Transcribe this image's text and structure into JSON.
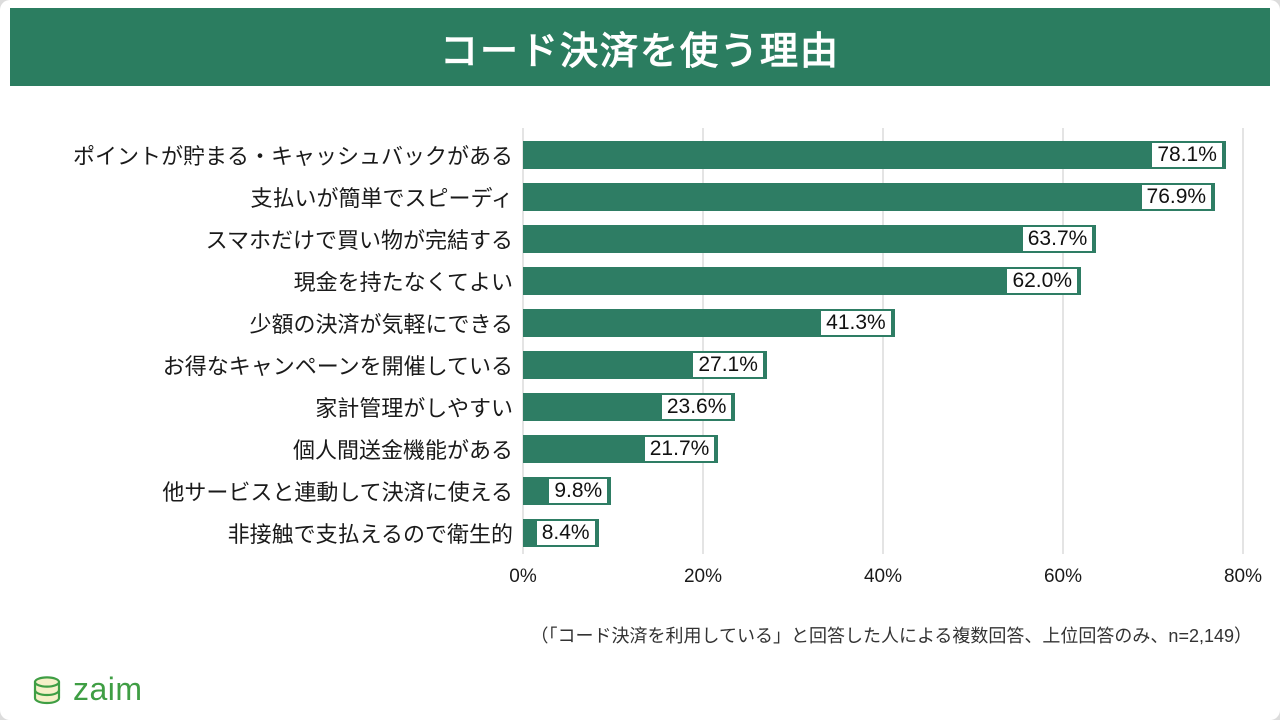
{
  "header": {
    "title": "コード決済を使う理由"
  },
  "colors": {
    "banner_green": "#2b7d60",
    "bar_green": "#2e7d64",
    "gridline_gray": "#c9c9c9",
    "logo_green": "#3f9e44"
  },
  "chart_data": {
    "type": "bar",
    "orientation": "horizontal",
    "title": "コード決済を使う理由",
    "categories": [
      "ポイントが貯まる・キャッシュバックがある",
      "支払いが簡単でスピーディ",
      "スマホだけで買い物が完結する",
      "現金を持たなくてよい",
      "少額の決済が気軽にできる",
      "お得なキャンペーンを開催している",
      "家計管理がしやすい",
      "個人間送金機能がある",
      "他サービスと連動して決済に使える",
      "非接触で支払えるので衛生的"
    ],
    "values": [
      78.1,
      76.9,
      63.7,
      62.0,
      41.3,
      27.1,
      23.6,
      21.7,
      9.8,
      8.4
    ],
    "value_labels": [
      "78.1%",
      "76.9%",
      "63.7%",
      "62.0%",
      "41.3%",
      "27.1%",
      "23.6%",
      "21.7%",
      "9.8%",
      "8.4%"
    ],
    "x_ticks": [
      "0%",
      "20%",
      "40%",
      "60%",
      "80%"
    ],
    "xlim": [
      0,
      80
    ],
    "grid": true,
    "legend": false
  },
  "footnote": "（「コード決済を利用している」と回答した人による複数回答、上位回答のみ、n=2,149）",
  "footer": {
    "logo_text": "zaim"
  }
}
